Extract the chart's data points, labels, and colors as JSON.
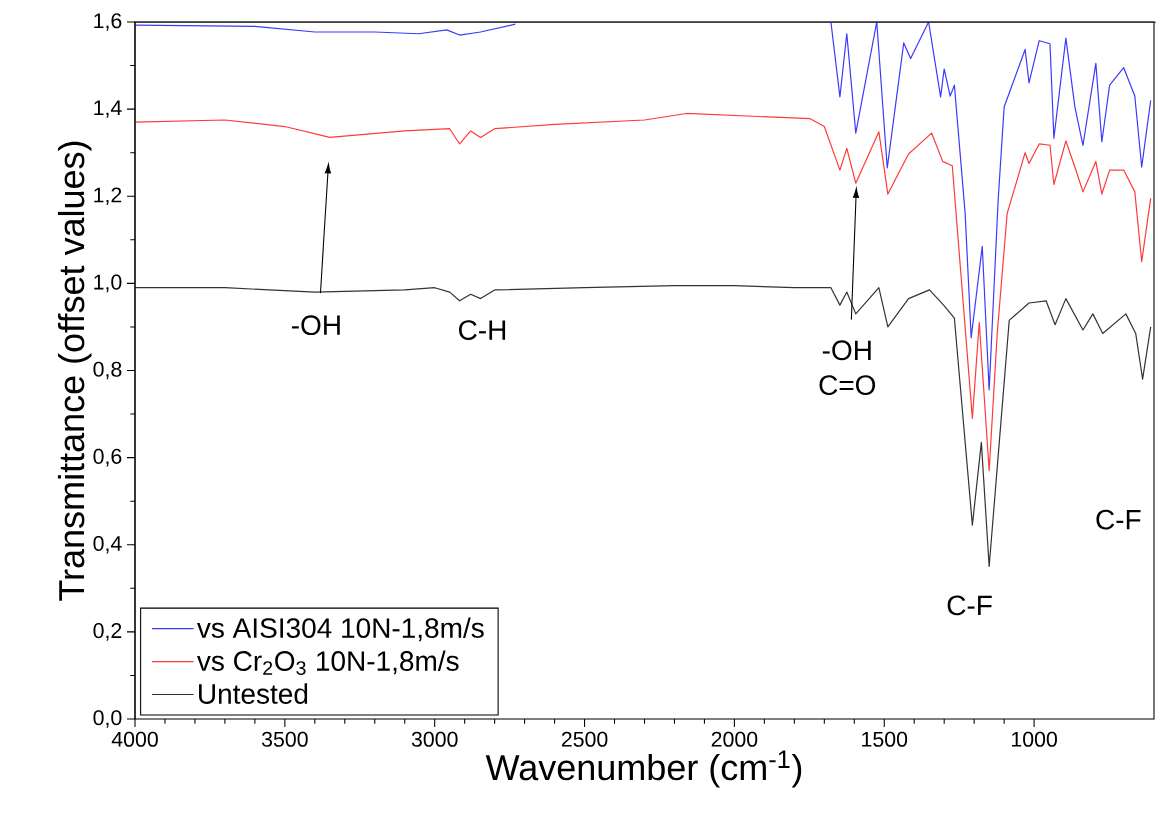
{
  "chart_data": {
    "type": "line",
    "xlabel": "Wavenumber (cm$^{-1}$)",
    "ylabel": "Transmittance (offset values)",
    "xlim": [
      4000,
      600
    ],
    "ylim": [
      0,
      1.6
    ],
    "xticks": [
      4000,
      3500,
      3000,
      2500,
      2000,
      1500,
      1000
    ],
    "yticks": [
      {
        "value": 0,
        "label": "0,0"
      },
      {
        "value": 0.2,
        "label": "0,2"
      },
      {
        "value": 0.4,
        "label": "0,4"
      },
      {
        "value": 0.6,
        "label": "0,6"
      },
      {
        "value": 0.8,
        "label": "0,8"
      },
      {
        "value": 1.0,
        "label": "1,0"
      },
      {
        "value": 1.2,
        "label": "1,2"
      },
      {
        "value": 1.4,
        "label": "1,4"
      },
      {
        "value": 1.6,
        "label": "1,6"
      }
    ],
    "grid": false,
    "legend": "bottom left",
    "marker": "none",
    "line_style": "solid",
    "series": [
      {
        "name": "vs AISI304 10N-1,8m/s",
        "color": "#3a3aff",
        "x": [
          4000,
          3600,
          3400,
          3200,
          3053,
          2960,
          2917,
          2847,
          2731,
          2650,
          1680,
          1678,
          1648,
          1625,
          1595,
          1525,
          1490,
          1435,
          1412,
          1352,
          1312,
          1300,
          1280,
          1266,
          1230,
          1210,
          1173,
          1150,
          1120,
          1100,
          1030,
          1017,
          983,
          947,
          934,
          894,
          864,
          837,
          794,
          774,
          748,
          701,
          664,
          641,
          611
        ],
        "values": [
          1.593,
          1.59,
          1.577,
          1.577,
          1.573,
          1.582,
          1.57,
          1.577,
          1.595,
          null,
          null,
          1.6,
          1.428,
          1.573,
          1.345,
          1.6,
          1.265,
          1.552,
          1.516,
          1.6,
          1.428,
          1.492,
          1.43,
          1.455,
          1.16,
          0.875,
          1.085,
          0.755,
          1.19,
          1.405,
          1.537,
          1.46,
          1.557,
          1.55,
          1.333,
          1.563,
          1.405,
          1.317,
          1.505,
          1.325,
          1.455,
          1.495,
          1.43,
          1.267,
          1.42
        ]
      },
      {
        "name": "vs Cr$_{2}$O$_{3}$ 10N-1,8m/s",
        "color": "#ff3a3a",
        "x": [
          4000,
          3700,
          3500,
          3350,
          3100,
          2950,
          2917,
          2880,
          2847,
          2800,
          2600,
          2300,
          2160,
          1747,
          1700,
          1648,
          1625,
          1595,
          1518,
          1488,
          1419,
          1342,
          1305,
          1273,
          1206,
          1183,
          1150,
          1123,
          1090,
          1030,
          1017,
          983,
          947,
          934,
          894,
          864,
          837,
          794,
          774,
          748,
          701,
          664,
          641,
          611
        ],
        "values": [
          1.37,
          1.375,
          1.36,
          1.335,
          1.35,
          1.355,
          1.32,
          1.35,
          1.335,
          1.355,
          1.365,
          1.375,
          1.39,
          1.378,
          1.36,
          1.26,
          1.31,
          1.23,
          1.348,
          1.205,
          1.297,
          1.345,
          1.28,
          1.27,
          0.69,
          0.91,
          0.57,
          0.885,
          1.16,
          1.3,
          1.275,
          1.32,
          1.317,
          1.227,
          1.327,
          1.267,
          1.21,
          1.28,
          1.205,
          1.26,
          1.26,
          1.21,
          1.05,
          1.195
        ]
      },
      {
        "name": "Untested",
        "color": "#333333",
        "x": [
          4000,
          3700,
          3400,
          3100,
          3000,
          2950,
          2917,
          2880,
          2847,
          2800,
          2500,
          2200,
          2000,
          1800,
          1678,
          1648,
          1625,
          1595,
          1518,
          1488,
          1419,
          1349,
          1302,
          1266,
          1206,
          1176,
          1150,
          1083,
          1017,
          960,
          930,
          894,
          837,
          804,
          771,
          694,
          661,
          638,
          611
        ],
        "values": [
          0.99,
          0.99,
          0.98,
          0.985,
          0.99,
          0.98,
          0.96,
          0.975,
          0.965,
          0.985,
          0.99,
          0.995,
          0.995,
          0.99,
          0.99,
          0.95,
          0.98,
          0.93,
          0.99,
          0.9,
          0.965,
          0.985,
          0.95,
          0.92,
          0.445,
          0.635,
          0.35,
          0.915,
          0.955,
          0.96,
          0.905,
          0.965,
          0.893,
          0.93,
          0.885,
          0.93,
          0.885,
          0.78,
          0.9
        ]
      }
    ],
    "annotations": [
      "-OH",
      "C-H",
      "-OH",
      "C=O",
      "C-F",
      "C-F"
    ]
  }
}
